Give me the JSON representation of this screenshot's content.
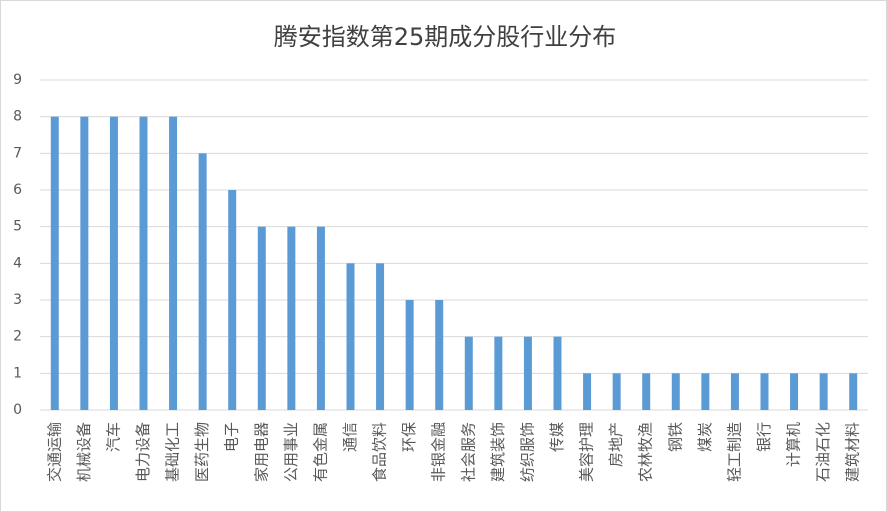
{
  "chart_data": {
    "type": "bar",
    "title": "腾安指数第25期成分股行业分布",
    "categories": [
      "交通运输",
      "机械设备",
      "汽车",
      "电力设备",
      "基础化工",
      "医药生物",
      "电子",
      "家用电器",
      "公用事业",
      "有色金属",
      "通信",
      "食品饮料",
      "环保",
      "非银金融",
      "社会服务",
      "建筑装饰",
      "纺织服饰",
      "传媒",
      "美容护理",
      "房地产",
      "农林牧渔",
      "钢铁",
      "煤炭",
      "轻工制造",
      "银行",
      "计算机",
      "石油石化",
      "建筑材料"
    ],
    "values": [
      8,
      8,
      8,
      8,
      8,
      7,
      6,
      5,
      5,
      5,
      4,
      4,
      3,
      3,
      2,
      2,
      2,
      2,
      1,
      1,
      1,
      1,
      1,
      1,
      1,
      1,
      1,
      1
    ],
    "color": "#5b9bd5",
    "ylim": [
      0,
      9
    ],
    "yticks": [
      0,
      1,
      2,
      3,
      4,
      5,
      6,
      7,
      8,
      9
    ],
    "grid": true
  }
}
